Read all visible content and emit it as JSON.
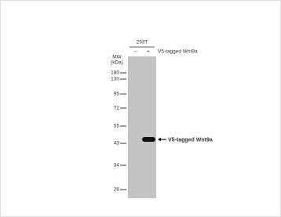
{
  "header": {
    "cell_line": "293T",
    "lanes": [
      "–",
      "+"
    ],
    "condition": "V5-tagged Wnt9a"
  },
  "mw_label": [
    "MW",
    "(kDa)"
  ],
  "markers": [
    "180",
    "130",
    "95",
    "72",
    "55",
    "43",
    "34",
    "26"
  ],
  "band_label": "V5-tagged Wnt9a"
}
